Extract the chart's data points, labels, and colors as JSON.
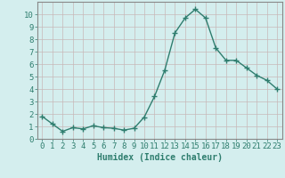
{
  "x": [
    0,
    1,
    2,
    3,
    4,
    5,
    6,
    7,
    8,
    9,
    10,
    11,
    12,
    13,
    14,
    15,
    16,
    17,
    18,
    19,
    20,
    21,
    22,
    23
  ],
  "y": [
    1.8,
    1.2,
    0.6,
    0.9,
    0.8,
    1.05,
    0.9,
    0.85,
    0.7,
    0.85,
    1.75,
    3.4,
    5.5,
    8.5,
    9.7,
    10.4,
    9.7,
    7.3,
    6.3,
    6.3,
    5.7,
    5.1,
    4.7,
    4.0
  ],
  "line_color": "#2e7d6e",
  "marker": "+",
  "marker_size": 4,
  "bg_color": "#d4eeee",
  "grid_color": "#c8b8b8",
  "xlabel": "Humidex (Indice chaleur)",
  "xlim": [
    -0.5,
    23.5
  ],
  "ylim": [
    0,
    11
  ],
  "yticks": [
    0,
    1,
    2,
    3,
    4,
    5,
    6,
    7,
    8,
    9,
    10
  ],
  "xticks": [
    0,
    1,
    2,
    3,
    4,
    5,
    6,
    7,
    8,
    9,
    10,
    11,
    12,
    13,
    14,
    15,
    16,
    17,
    18,
    19,
    20,
    21,
    22,
    23
  ],
  "xlabel_fontsize": 7,
  "tick_fontsize": 6.5,
  "tick_color": "#2e7d6e",
  "spine_color": "#888888",
  "linewidth": 1.0,
  "marker_linewidth": 1.0
}
